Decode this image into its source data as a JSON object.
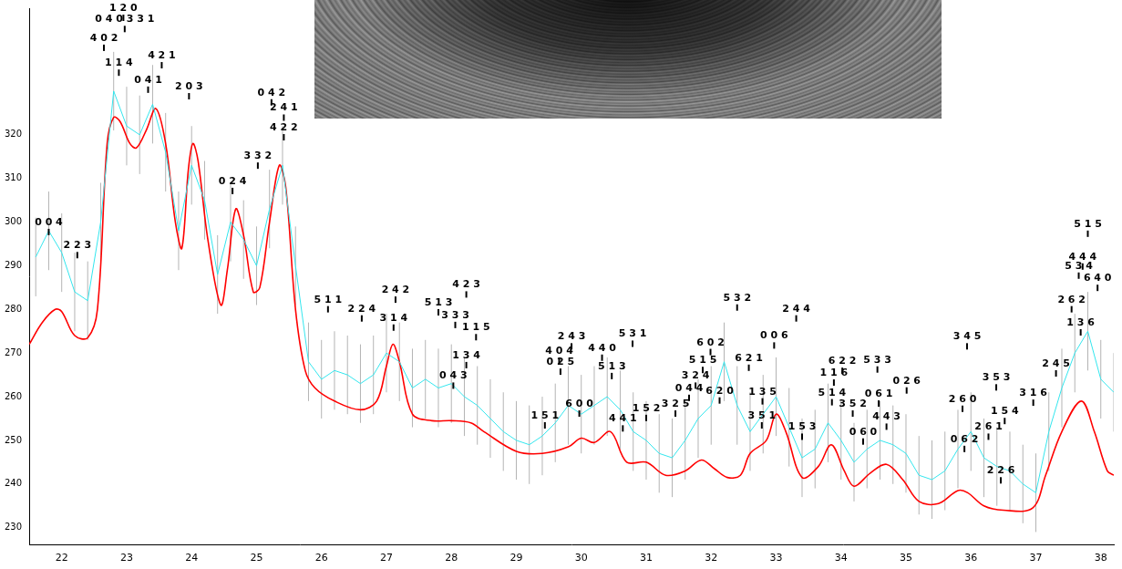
{
  "chart_data": {
    "type": "line",
    "xlim": [
      21.5,
      38.2
    ],
    "xticks": [
      22,
      23,
      24,
      25,
      26,
      27,
      28,
      29,
      30,
      31,
      32,
      33,
      34,
      35,
      36,
      37,
      38
    ],
    "ylim": [
      226,
      349
    ],
    "yticks": [
      230,
      240,
      250,
      260,
      270,
      280,
      290,
      300,
      310,
      320
    ],
    "grid": false,
    "series": [
      {
        "color": "#33e6ee",
        "error": 9,
        "x": [
          21.6,
          21.8,
          22.0,
          22.2,
          22.4,
          22.6,
          22.8,
          23.0,
          23.2,
          23.4,
          23.6,
          23.8,
          24.0,
          24.2,
          24.4,
          24.6,
          24.8,
          25.0,
          25.2,
          25.4,
          25.6,
          25.8,
          26.0,
          26.2,
          26.4,
          26.6,
          26.8,
          27.0,
          27.2,
          27.4,
          27.6,
          27.8,
          28.0,
          28.2,
          28.4,
          28.6,
          28.8,
          29.0,
          29.2,
          29.4,
          29.6,
          29.8,
          30.0,
          30.2,
          30.4,
          30.6,
          30.8,
          31.0,
          31.2,
          31.4,
          31.6,
          31.8,
          32.0,
          32.2,
          32.4,
          32.6,
          32.8,
          33.0,
          33.2,
          33.4,
          33.6,
          33.8,
          34.0,
          34.2,
          34.4,
          34.6,
          34.8,
          35.0,
          35.2,
          35.4,
          35.6,
          35.8,
          36.0,
          36.2,
          36.4,
          36.6,
          36.8,
          37.0,
          37.2,
          37.4,
          37.6,
          37.8,
          38.0,
          38.2
        ],
        "values": [
          292,
          298,
          293,
          284,
          282,
          300,
          330,
          322,
          320,
          327,
          316,
          298,
          313,
          305,
          288,
          300,
          296,
          290,
          303,
          313,
          290,
          268,
          264,
          266,
          265,
          263,
          265,
          270,
          268,
          262,
          264,
          262,
          263,
          260,
          258,
          255,
          252,
          250,
          249,
          251,
          254,
          258,
          256,
          258,
          260,
          257,
          252,
          250,
          247,
          246,
          250,
          255,
          258,
          268,
          258,
          252,
          256,
          260,
          253,
          246,
          248,
          254,
          250,
          245,
          248,
          250,
          249,
          247,
          242,
          241,
          243,
          248,
          252,
          246,
          244,
          243,
          240,
          238,
          252,
          262,
          270,
          275,
          264,
          261
        ]
      },
      {
        "color": "#ff0000",
        "x": [
          21.5,
          21.7,
          21.9,
          22.0,
          22.2,
          22.4,
          22.55,
          22.7,
          22.8,
          22.9,
          23.05,
          23.15,
          23.3,
          23.45,
          23.6,
          23.75,
          23.85,
          23.95,
          24.02,
          24.1,
          24.25,
          24.45,
          24.55,
          24.68,
          24.8,
          24.95,
          25.05,
          25.2,
          25.35,
          25.45,
          25.6,
          25.75,
          25.9,
          26.2,
          26.6,
          26.85,
          27.0,
          27.1,
          27.2,
          27.4,
          27.7,
          28.0,
          28.3,
          28.5,
          29.0,
          29.4,
          29.8,
          30.0,
          30.2,
          30.45,
          30.7,
          31.0,
          31.3,
          31.6,
          31.85,
          32.05,
          32.25,
          32.45,
          32.6,
          32.85,
          33.0,
          33.15,
          33.4,
          33.65,
          33.85,
          34.05,
          34.2,
          34.45,
          34.7,
          34.95,
          35.2,
          35.5,
          35.8,
          35.95,
          36.2,
          36.5,
          36.95,
          37.15,
          37.4,
          37.7,
          37.9,
          38.1,
          38.2
        ],
        "values": [
          272,
          277,
          280,
          279.5,
          274,
          273.5,
          280,
          318,
          324,
          323,
          318,
          317,
          321,
          326,
          318,
          300,
          294,
          312,
          318,
          314,
          296,
          281,
          289,
          303,
          297,
          284,
          285,
          300,
          313,
          308,
          280,
          266,
          262,
          259,
          257,
          259,
          267,
          272,
          268,
          256,
          254.5,
          254.5,
          254,
          252,
          247.5,
          247,
          248.5,
          250.5,
          249.5,
          252,
          245,
          245,
          242,
          243,
          245.5,
          243.5,
          241.5,
          242,
          247,
          250,
          256,
          252,
          241.5,
          244,
          249,
          243,
          239.5,
          242.5,
          244.5,
          241,
          236,
          235.5,
          238.5,
          238,
          235,
          234,
          234.5,
          242,
          252,
          259,
          252,
          243,
          242
        ]
      }
    ],
    "annotations": [
      {
        "text": "0 4 0 3 3 1",
        "x": 22.97,
        "y": 345.8
      },
      {
        "text": "4 0 2",
        "x": 22.65,
        "y": 341.5
      },
      {
        "text": "1 2 0",
        "x": 22.95,
        "y": 339.5
      },
      {
        "text": "4 2 1",
        "x": 23.54,
        "y": 337.5
      },
      {
        "text": "1 1 4",
        "x": 22.88,
        "y": 335.8
      },
      {
        "text": "0 4 1",
        "x": 23.33,
        "y": 331.9
      },
      {
        "text": "2 0 3",
        "x": 23.96,
        "y": 330.4
      },
      {
        "text": "0 4 2",
        "x": 25.23,
        "y": 329
      },
      {
        "text": "2 4 1",
        "x": 25.42,
        "y": 325.5
      },
      {
        "text": "4 2 2",
        "x": 25.42,
        "y": 321
      },
      {
        "text": "3 3 2",
        "x": 25.02,
        "y": 314.5
      },
      {
        "text": "0 2 4",
        "x": 24.63,
        "y": 308.7
      },
      {
        "text": "0 0 4",
        "x": 21.8,
        "y": 299.3
      },
      {
        "text": "2 2 3",
        "x": 22.24,
        "y": 294
      },
      {
        "text": "5 1 1",
        "x": 26.1,
        "y": 281.6
      },
      {
        "text": "2 2 4",
        "x": 26.62,
        "y": 279.5
      },
      {
        "text": "2 4 2",
        "x": 27.14,
        "y": 283.8
      },
      {
        "text": "3 1 4",
        "x": 27.11,
        "y": 277.4
      },
      {
        "text": "3 3 3",
        "x": 28.06,
        "y": 278
      },
      {
        "text": "5 1 3",
        "x": 27.8,
        "y": 276.3
      },
      {
        "text": "1 1 5",
        "x": 28.38,
        "y": 275.2
      },
      {
        "text": "4 2 3",
        "x": 28.23,
        "y": 273.5
      },
      {
        "text": "1 3 4",
        "x": 28.23,
        "y": 268.8
      },
      {
        "text": "0 4 3",
        "x": 28.03,
        "y": 264.1
      },
      {
        "text": "2 4 3",
        "x": 29.85,
        "y": 273.1
      },
      {
        "text": "5 3 1",
        "x": 30.79,
        "y": 273.7
      },
      {
        "text": "4 4 0",
        "x": 30.32,
        "y": 270.5
      },
      {
        "text": "0 2 5",
        "x": 29.68,
        "y": 267.3
      },
      {
        "text": "4 0 4",
        "x": 29.66,
        "y": 265.2
      },
      {
        "text": "5 1 3",
        "x": 30.47,
        "y": 266.3
      },
      {
        "text": "1 5 1",
        "x": 29.44,
        "y": 255
      },
      {
        "text": "6 0 0",
        "x": 29.97,
        "y": 257.7
      },
      {
        "text": "4 4 1",
        "x": 30.64,
        "y": 254.3
      },
      {
        "text": "1 5 2",
        "x": 31.0,
        "y": 256.7
      },
      {
        "text": "3 2 5",
        "x": 31.45,
        "y": 257.7
      },
      {
        "text": "5 3 2",
        "x": 32.4,
        "y": 282
      },
      {
        "text": "2 4 4",
        "x": 33.31,
        "y": 279.5
      },
      {
        "text": "6 0 2",
        "x": 31.99,
        "y": 271.8
      },
      {
        "text": "0 0 6",
        "x": 32.97,
        "y": 273.3
      },
      {
        "text": "6 2 1",
        "x": 32.58,
        "y": 268.2
      },
      {
        "text": "3 2 4",
        "x": 31.76,
        "y": 264.1
      },
      {
        "text": "6 2 0",
        "x": 32.13,
        "y": 260.7
      },
      {
        "text": "0 4 4",
        "x": 31.66,
        "y": 259
      },
      {
        "text": "5 1 5",
        "x": 31.87,
        "y": 256.2
      },
      {
        "text": "1 3 5",
        "x": 32.79,
        "y": 260.5
      },
      {
        "text": "3 5 1",
        "x": 32.78,
        "y": 255
      },
      {
        "text": "1 5 3",
        "x": 33.4,
        "y": 252.4
      },
      {
        "text": "1 1 6",
        "x": 33.89,
        "y": 264.8
      },
      {
        "text": "6 2 2",
        "x": 34.02,
        "y": 267.5
      },
      {
        "text": "5 3 3",
        "x": 34.56,
        "y": 267.8
      },
      {
        "text": "5 1 4",
        "x": 33.86,
        "y": 260.3
      },
      {
        "text": "3 5 2",
        "x": 34.18,
        "y": 257.7
      },
      {
        "text": "0 6 1",
        "x": 34.58,
        "y": 257.7
      },
      {
        "text": "0 2 6",
        "x": 35.01,
        "y": 260.7
      },
      {
        "text": "0 6 0",
        "x": 34.34,
        "y": 251.3
      },
      {
        "text": "4 4 3",
        "x": 34.7,
        "y": 252.4
      },
      {
        "text": "3 4 5",
        "x": 35.94,
        "y": 273.1
      },
      {
        "text": "2 6 0",
        "x": 35.87,
        "y": 258.8
      },
      {
        "text": "3 5 3",
        "x": 36.39,
        "y": 263.7
      },
      {
        "text": "0 6 2",
        "x": 35.9,
        "y": 249.6
      },
      {
        "text": "2 6 1",
        "x": 36.27,
        "y": 252.4
      },
      {
        "text": "1 5 4",
        "x": 36.52,
        "y": 256
      },
      {
        "text": "3 1 6",
        "x": 36.96,
        "y": 255.6
      },
      {
        "text": "2 2 6",
        "x": 36.46,
        "y": 242.4
      },
      {
        "text": "5 1 5",
        "x": 37.8,
        "y": 298.9
      },
      {
        "text": "5 3 4",
        "x": 37.66,
        "y": 289.3
      },
      {
        "text": "6 4 0",
        "x": 37.95,
        "y": 286.5
      },
      {
        "text": "2 6 2",
        "x": 37.55,
        "y": 281.6
      },
      {
        "text": "4 4 4",
        "x": 37.72,
        "y": 279.9
      },
      {
        "text": "1 3 6",
        "x": 37.69,
        "y": 276.3
      },
      {
        "text": "2 4 5",
        "x": 37.31,
        "y": 266.9
      }
    ]
  }
}
